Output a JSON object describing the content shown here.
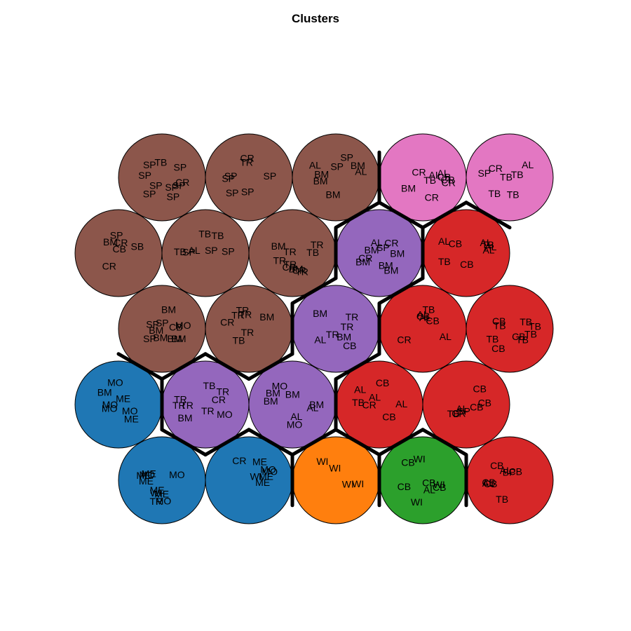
{
  "chart_data": {
    "type": "som-hex-map",
    "title": "Clusters",
    "grid": {
      "cols": 5,
      "rows": 5,
      "topology": "hexagonal"
    },
    "colors": {
      "brown": "#8c564b",
      "pink": "#e377c2",
      "purple": "#9467bd",
      "red": "#d62728",
      "blue": "#1f77b4",
      "orange": "#ff7f0e",
      "green": "#2ca02c"
    },
    "cells": [
      {
        "row": 1,
        "col": 1,
        "cluster": "brown",
        "labels": [
          "TB",
          "SP",
          "SP",
          "CR",
          "SP",
          "SP",
          "SP",
          "SP",
          "SP",
          "SP"
        ]
      },
      {
        "row": 1,
        "col": 2,
        "cluster": "brown",
        "labels": [
          "SP",
          "SP",
          "CR",
          "SP",
          "SP",
          "SP",
          "TR"
        ]
      },
      {
        "row": 1,
        "col": 3,
        "cluster": "brown",
        "labels": [
          "AL",
          "AL",
          "SP",
          "SP",
          "BM",
          "BM",
          "BM",
          "BM"
        ]
      },
      {
        "row": 1,
        "col": 4,
        "cluster": "pink",
        "labels": [
          "CR",
          "CR",
          "TB",
          "AL",
          "CB",
          "CR",
          "CR",
          "AL",
          "BM"
        ]
      },
      {
        "row": 1,
        "col": 5,
        "cluster": "pink",
        "labels": [
          "CR",
          "AL",
          "TB",
          "SP",
          "TB",
          "TB",
          "TB"
        ]
      },
      {
        "row": 2,
        "col": 1,
        "cluster": "brown",
        "labels": [
          "CR",
          "CB",
          "SP",
          "SB",
          "BM",
          "CR"
        ]
      },
      {
        "row": 2,
        "col": 2,
        "cluster": "brown",
        "labels": [
          "TB",
          "TB",
          "SP",
          "SP",
          "AL",
          "SP",
          "TB"
        ]
      },
      {
        "row": 2,
        "col": 3,
        "cluster": "brown",
        "labels": [
          "TR",
          "TR",
          "TR",
          "BM",
          "TR",
          "BM",
          "CR",
          "TR",
          "CR",
          "TB"
        ]
      },
      {
        "row": 2,
        "col": 4,
        "cluster": "purple",
        "labels": [
          "BM",
          "BM",
          "BM",
          "CR",
          "BM",
          "BM",
          "CR",
          "AL",
          "SP"
        ]
      },
      {
        "row": 2,
        "col": 5,
        "cluster": "red",
        "labels": [
          "CB",
          "AL",
          "CB",
          "TB",
          "AL",
          "AL",
          "TB",
          "AL"
        ]
      },
      {
        "row": 3,
        "col": 1,
        "cluster": "brown",
        "labels": [
          "BM",
          "BM",
          "SP",
          "BM",
          "BM",
          "CB",
          "SP",
          "BM",
          "SP",
          "MO"
        ]
      },
      {
        "row": 3,
        "col": 2,
        "cluster": "brown",
        "labels": [
          "TR",
          "TR",
          "TB",
          "CR",
          "BM",
          "TR",
          "TR"
        ]
      },
      {
        "row": 3,
        "col": 3,
        "cluster": "purple",
        "labels": [
          "TR",
          "BM",
          "BM",
          "TR",
          "AL",
          "TR",
          "CB"
        ]
      },
      {
        "row": 3,
        "col": 4,
        "cluster": "red",
        "labels": [
          "AL",
          "AL",
          "CB",
          "AL",
          "TB",
          "CB",
          "CR"
        ]
      },
      {
        "row": 3,
        "col": 5,
        "cluster": "red",
        "labels": [
          "TB",
          "TB",
          "CB",
          "TB",
          "CB",
          "TB",
          "CB",
          "TB",
          "TB"
        ]
      },
      {
        "row": 4,
        "col": 1,
        "cluster": "blue",
        "labels": [
          "MO",
          "MO",
          "BM",
          "MO",
          "ME",
          "ME",
          "MO"
        ]
      },
      {
        "row": 4,
        "col": 2,
        "cluster": "purple",
        "labels": [
          "TR",
          "CR",
          "TR",
          "TB",
          "BM",
          "MO",
          "TR",
          "TR",
          "TR"
        ]
      },
      {
        "row": 4,
        "col": 3,
        "cluster": "purple",
        "labels": [
          "AL",
          "BM",
          "MO",
          "BM",
          "AL",
          "BM",
          "MO",
          "BM"
        ]
      },
      {
        "row": 4,
        "col": 4,
        "cluster": "red",
        "labels": [
          "CB",
          "CB",
          "TB",
          "CR",
          "AL",
          "AL",
          "AL"
        ]
      },
      {
        "row": 4,
        "col": 5,
        "cluster": "red",
        "labels": [
          "CR",
          "SP",
          "CB",
          "TB",
          "CB",
          "CB",
          "AL"
        ]
      },
      {
        "row": 5,
        "col": 1,
        "cluster": "blue",
        "labels": [
          "TR",
          "ME",
          "MO",
          "MO",
          "ME",
          "ME",
          "WI",
          "MO",
          "ME",
          "ME"
        ]
      },
      {
        "row": 5,
        "col": 2,
        "cluster": "blue",
        "labels": [
          "ME",
          "CR",
          "ME",
          "ME",
          "WI",
          "MO",
          "MO"
        ]
      },
      {
        "row": 5,
        "col": 3,
        "cluster": "orange",
        "labels": [
          "WI",
          "WI",
          "WI",
          "WI"
        ]
      },
      {
        "row": 5,
        "col": 4,
        "cluster": "green",
        "labels": [
          "WI",
          "CB",
          "CB",
          "CB",
          "WI",
          "AL",
          "WI",
          "CB"
        ]
      },
      {
        "row": 5,
        "col": 5,
        "cluster": "red",
        "labels": [
          "TB",
          "CB",
          "CB",
          "CB",
          "BP",
          "AL",
          "AL",
          "CB"
        ]
      }
    ]
  }
}
